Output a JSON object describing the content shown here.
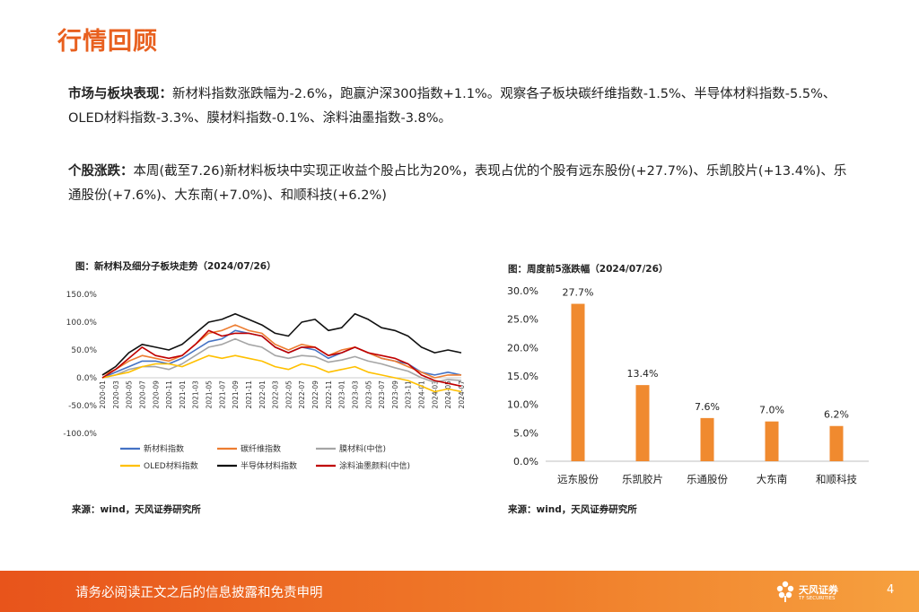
{
  "page": {
    "title": "行情回顾",
    "p1_label": "市场与板块表现：",
    "p1_text": "新材料指数涨跌幅为-2.6%，跑赢沪深300指数+1.1%。观察各子板块碳纤维指数-1.5%、半导体材料指数-5.5%、OLED材料指数-3.3%、膜材料指数-0.1%、涂料油墨指数-3.8%。",
    "p2_label": "个股涨跌：",
    "p2_text": "本周(截至7.26)新材料板块中实现正收益个股占比为20%，表现占优的个股有远东股份(+27.7%)、乐凯胶片(+13.4%)、乐通股份(+7.6%)、大东南(+7.0%)、和顺科技(+6.2%)"
  },
  "left_chart": {
    "caption": "图：新材料及细分子板块走势（2024/07/26）",
    "source": "来源：wind，天风证券研究所"
  },
  "right_chart": {
    "caption": "图：周度前5涨跌幅（2024/07/26）",
    "source": "来源：wind，天风证券研究所"
  },
  "footer": {
    "disclaimer": "请务必阅读正文之后的信息披露和免责申明",
    "logo_name": "天风证券",
    "logo_sub": "TF SECURITIES",
    "page_number": "4",
    "logo_icon": "tf-flower-logo"
  },
  "chart_data": [
    {
      "type": "line",
      "title": "图：新材料及细分子板块走势（2024/07/26）",
      "ylim": [
        -100,
        150
      ],
      "yticks": [
        "150.0%",
        "100.0%",
        "50.0%",
        "0.0%",
        "-50.0%",
        "-100.0%"
      ],
      "ytick_values": [
        150,
        100,
        50,
        0,
        -50,
        -100
      ],
      "x": [
        "2020-01",
        "2020-03",
        "2020-05",
        "2020-07",
        "2020-09",
        "2020-11",
        "2021-01",
        "2021-03",
        "2021-05",
        "2021-07",
        "2021-09",
        "2021-11",
        "2022-01",
        "2022-03",
        "2022-05",
        "2022-07",
        "2022-09",
        "2022-11",
        "2023-01",
        "2023-03",
        "2023-05",
        "2023-07",
        "2023-09",
        "2023-11",
        "2024-01",
        "2024-03",
        "2024-05",
        "2024-07"
      ],
      "legend_position": "bottom",
      "series": [
        {
          "name": "新材料指数",
          "color": "#4472c4",
          "values": [
            0,
            10,
            20,
            30,
            30,
            25,
            35,
            50,
            65,
            70,
            85,
            80,
            75,
            55,
            45,
            55,
            50,
            35,
            45,
            55,
            45,
            35,
            30,
            25,
            10,
            5,
            10,
            5
          ]
        },
        {
          "name": "碳纤维指数",
          "color": "#ed7d31",
          "values": [
            5,
            15,
            30,
            40,
            35,
            30,
            40,
            60,
            80,
            85,
            95,
            85,
            80,
            60,
            50,
            60,
            55,
            40,
            50,
            55,
            45,
            35,
            30,
            20,
            10,
            0,
            5,
            5
          ]
        },
        {
          "name": "膜材料(中信)",
          "color": "#a5a5a5",
          "values": [
            0,
            5,
            15,
            20,
            20,
            15,
            25,
            40,
            55,
            60,
            70,
            60,
            55,
            40,
            35,
            40,
            38,
            28,
            32,
            38,
            30,
            25,
            18,
            12,
            0,
            -8,
            -3,
            -5
          ]
        },
        {
          "name": "OLED材料指数",
          "color": "#ffc000",
          "values": [
            0,
            5,
            10,
            20,
            25,
            25,
            20,
            30,
            40,
            35,
            40,
            35,
            30,
            20,
            15,
            25,
            20,
            10,
            15,
            20,
            10,
            5,
            0,
            -5,
            -15,
            -25,
            -20,
            -25
          ]
        },
        {
          "name": "半导体材料指数",
          "color": "#111111",
          "values": [
            5,
            20,
            45,
            60,
            55,
            50,
            60,
            80,
            100,
            105,
            115,
            105,
            95,
            80,
            75,
            100,
            105,
            85,
            90,
            115,
            105,
            90,
            85,
            75,
            55,
            45,
            50,
            45
          ]
        },
        {
          "name": "涂料油墨颜料(中信)",
          "color": "#c00000",
          "values": [
            0,
            15,
            35,
            55,
            40,
            35,
            40,
            60,
            85,
            75,
            80,
            80,
            75,
            55,
            45,
            55,
            55,
            40,
            45,
            55,
            45,
            40,
            35,
            25,
            5,
            -5,
            -10,
            -15
          ]
        }
      ]
    },
    {
      "type": "bar",
      "title": "图：周度前5涨跌幅（2024/07/26）",
      "categories": [
        "远东股份",
        "乐凯胶片",
        "乐通股份",
        "大东南",
        "和顺科技"
      ],
      "values": [
        27.7,
        13.4,
        7.6,
        7.0,
        6.2
      ],
      "value_labels": [
        "27.7%",
        "13.4%",
        "7.6%",
        "7.0%",
        "6.2%"
      ],
      "ylim": [
        0,
        30
      ],
      "yticks": [
        "30.0%",
        "25.0%",
        "20.0%",
        "15.0%",
        "10.0%",
        "5.0%",
        "0.0%"
      ],
      "ytick_values": [
        30,
        25,
        20,
        15,
        10,
        5,
        0
      ],
      "color": "#f08a2f"
    }
  ]
}
